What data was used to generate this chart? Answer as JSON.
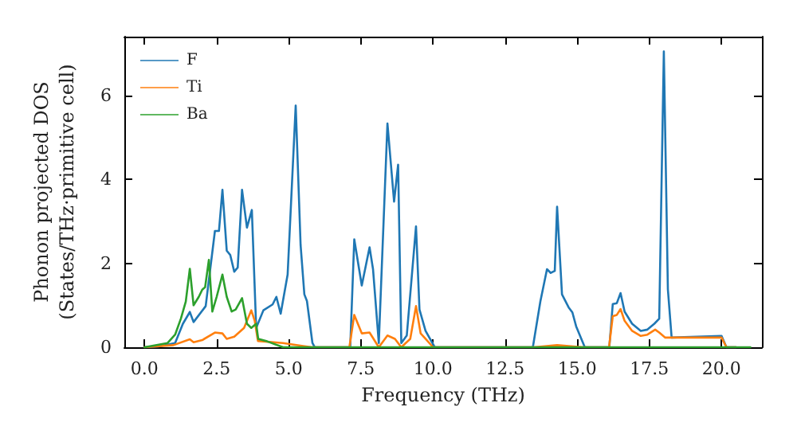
{
  "chart_data": {
    "type": "line",
    "xlabel": "Frequency (THz)",
    "ylabel": "Phonon projected DOS\n(States/THz·primitive cell)",
    "xlim": [
      -0.7,
      21.4
    ],
    "ylim": [
      0,
      7.4
    ],
    "xticks": [
      {
        "value": 0,
        "label": "0.0"
      },
      {
        "value": 2.5,
        "label": "2.5"
      },
      {
        "value": 5,
        "label": "5.0"
      },
      {
        "value": 7.5,
        "label": "7.5"
      },
      {
        "value": 10,
        "label": "10.0"
      },
      {
        "value": 12.5,
        "label": "12.5"
      },
      {
        "value": 15,
        "label": "15.0"
      },
      {
        "value": 17.5,
        "label": "17.5"
      },
      {
        "value": 20,
        "label": "20.0"
      }
    ],
    "yticks": [
      0,
      2,
      4,
      6
    ],
    "grid": false,
    "legend": "top left",
    "marker": "none",
    "line_style": "solid",
    "series": [
      {
        "name": "F",
        "color": "#1f77b4",
        "x": [
          0,
          0.5,
          1.06,
          1.33,
          1.57,
          1.7,
          2.12,
          2.44,
          2.58,
          2.7,
          2.85,
          2.97,
          3.11,
          3.23,
          3.38,
          3.55,
          3.72,
          3.87,
          4.12,
          4.44,
          4.57,
          4.72,
          4.96,
          5.24,
          5.41,
          5.54,
          5.63,
          5.82,
          5.9,
          7.13,
          7.27,
          7.53,
          7.8,
          7.92,
          8.12,
          8.42,
          8.65,
          8.79,
          8.9,
          9.09,
          9.41,
          9.53,
          9.74,
          10.06,
          13.46,
          13.72,
          13.95,
          14.08,
          14.22,
          14.3,
          14.47,
          14.7,
          14.83,
          14.96,
          15.26,
          16.11,
          16.23,
          16.37,
          16.5,
          16.64,
          16.9,
          17.2,
          17.43,
          17.67,
          17.84,
          18.0,
          18.14,
          18.27,
          20.0,
          20.17,
          20.5
        ],
        "values": [
          0,
          0.02,
          0.1,
          0.56,
          0.84,
          0.6,
          0.98,
          2.77,
          2.77,
          3.75,
          2.3,
          2.2,
          1.8,
          1.9,
          3.75,
          2.85,
          3.27,
          0.46,
          0.88,
          1.02,
          1.2,
          0.8,
          1.73,
          5.76,
          2.43,
          1.26,
          1.1,
          0.1,
          0,
          0,
          2.57,
          1.47,
          2.38,
          1.86,
          0.1,
          5.33,
          3.47,
          4.35,
          0.1,
          0.28,
          2.88,
          0.9,
          0.39,
          0,
          0,
          1.09,
          1.86,
          1.77,
          1.82,
          3.35,
          1.26,
          0.95,
          0.83,
          0.5,
          0,
          0,
          1.03,
          1.05,
          1.29,
          0.85,
          0.56,
          0.39,
          0.42,
          0.56,
          0.68,
          7.05,
          1.38,
          0.23,
          0.27,
          0,
          0
        ]
      },
      {
        "name": "Ti",
        "color": "#ff7f0e",
        "x": [
          0,
          1.0,
          1.57,
          1.7,
          2.0,
          2.44,
          2.7,
          2.85,
          3.11,
          3.45,
          3.7,
          3.82,
          3.93,
          4.8,
          5.5,
          5.8,
          7.1,
          7.27,
          7.53,
          7.8,
          8.12,
          8.42,
          8.68,
          8.9,
          9.21,
          9.41,
          9.57,
          9.74,
          10.0,
          13.5,
          14.3,
          15.2,
          16.1,
          16.23,
          16.37,
          16.5,
          16.64,
          16.9,
          17.2,
          17.43,
          17.7,
          17.84,
          18.05,
          20.0,
          20.17,
          20.5
        ],
        "values": [
          0,
          0.05,
          0.19,
          0.12,
          0.17,
          0.35,
          0.33,
          0.2,
          0.25,
          0.46,
          0.88,
          0.63,
          0.15,
          0.1,
          0.03,
          0,
          0,
          0.77,
          0.33,
          0.35,
          0,
          0.28,
          0.2,
          0,
          0.2,
          0.98,
          0.33,
          0.2,
          0,
          0,
          0.05,
          0,
          0,
          0.74,
          0.77,
          0.91,
          0.63,
          0.39,
          0.27,
          0.3,
          0.42,
          0.35,
          0.23,
          0.23,
          0,
          0
        ]
      },
      {
        "name": "Ba",
        "color": "#2ca02c",
        "x": [
          0,
          0.8,
          1.06,
          1.26,
          1.43,
          1.57,
          1.7,
          1.88,
          2.0,
          2.1,
          2.23,
          2.35,
          2.5,
          2.7,
          2.85,
          3.02,
          3.16,
          3.38,
          3.55,
          3.7,
          3.87,
          3.94,
          4.25,
          4.8,
          21.0
        ],
        "values": [
          0,
          0.1,
          0.3,
          0.68,
          1.09,
          1.87,
          1.0,
          1.2,
          1.37,
          1.43,
          2.08,
          0.85,
          1.2,
          1.73,
          1.2,
          0.85,
          0.9,
          1.17,
          0.56,
          0.46,
          0.56,
          0.2,
          0.14,
          0,
          0
        ]
      }
    ]
  }
}
